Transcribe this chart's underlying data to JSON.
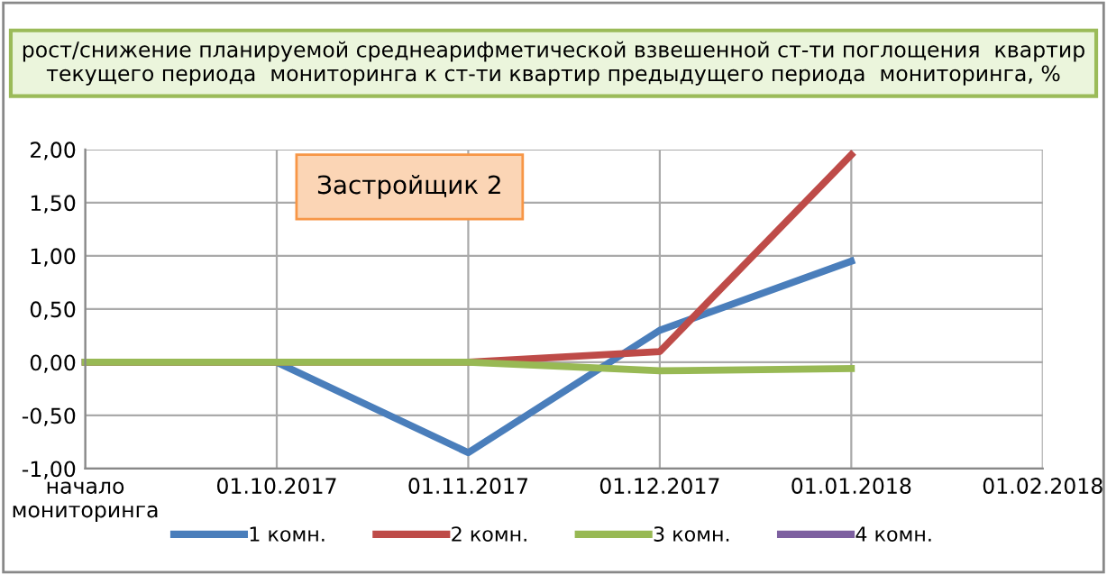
{
  "chart_data": {
    "type": "line",
    "title": "рост/снижение планируемой среднеарифметической взвешенной ст-ти поглощения  квартир текущего периода  мониторинга к ст-ти квартир предыдущего периода  мониторинга, %",
    "annotations": [
      "Застройщик 2"
    ],
    "categories": [
      "начало\nмониторинга",
      "01.10.2017",
      "01.11.2017",
      "01.12.2017",
      "01.01.2018",
      "01.02.2018"
    ],
    "series": [
      {
        "name": "1 комн.",
        "color": "#4a7ebb",
        "values": [
          0,
          0,
          -0.85,
          0.3,
          0.95,
          null
        ]
      },
      {
        "name": "2 комн.",
        "color": "#be4b48",
        "values": [
          0,
          0,
          0,
          0.1,
          1.95,
          null
        ]
      },
      {
        "name": "3 комн.",
        "color": "#98b954",
        "values": [
          0,
          0,
          0,
          -0.08,
          -0.06,
          null
        ]
      },
      {
        "name": "4 комн.",
        "color": "#7d60a0",
        "values": [
          null,
          null,
          null,
          null,
          null,
          null
        ]
      }
    ],
    "ylim": [
      -1,
      2
    ],
    "yticks": [
      {
        "value": -1,
        "label": "-1,00"
      },
      {
        "value": -0.5,
        "label": "-0,50"
      },
      {
        "value": 0,
        "label": "0,00"
      },
      {
        "value": 0.5,
        "label": "0,50"
      },
      {
        "value": 1,
        "label": "1,00"
      },
      {
        "value": 1.5,
        "label": "1,50"
      },
      {
        "value": 2,
        "label": "2,00"
      }
    ],
    "grid": true,
    "legend": "bottom",
    "marker": "none",
    "line_style": "solid"
  }
}
